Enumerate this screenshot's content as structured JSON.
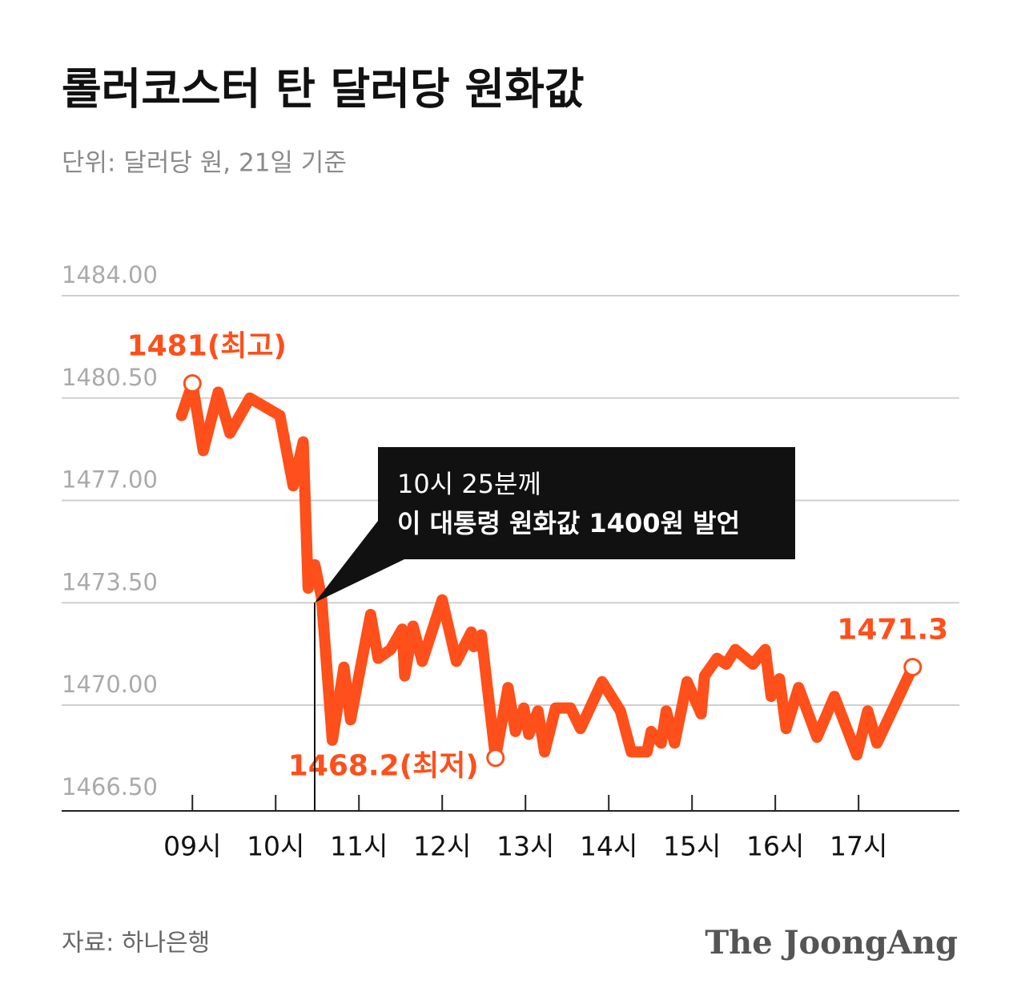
{
  "chart_data": {
    "type": "line",
    "title": "롤러코스터 탄 달러당 원화값",
    "subtitle": "단위: 달러당 원, 21일 기준",
    "source": "자료: 하나은행",
    "brand": "The JoongAng",
    "annotation": {
      "lines": [
        "10시 25분께",
        "이 대통령 원화값 1400원 발언"
      ]
    },
    "color": "#ff4f1a",
    "x": [
      8.87,
      9.0,
      9.13,
      9.31,
      9.45,
      9.69,
      10.05,
      10.21,
      10.33,
      10.39,
      10.47,
      10.55,
      10.68,
      10.82,
      10.9,
      11.14,
      11.23,
      11.38,
      11.52,
      11.55,
      11.65,
      11.76,
      12.0,
      12.17,
      12.35,
      12.38,
      12.47,
      12.64,
      12.79,
      12.88,
      12.98,
      13.04,
      13.15,
      13.23,
      13.36,
      13.54,
      13.66,
      13.92,
      14.14,
      14.27,
      14.46,
      14.51,
      14.63,
      14.69,
      14.79,
      14.94,
      15.11,
      15.15,
      15.3,
      15.41,
      15.52,
      15.73,
      15.88,
      15.95,
      16.05,
      16.13,
      16.28,
      16.5,
      16.71,
      16.98,
      17.11,
      17.22,
      17.65
    ],
    "values": [
      1479.9,
      1481,
      1478.7,
      1480.7,
      1479.3,
      1480.5,
      1479.9,
      1477.5,
      1479.0,
      1474.0,
      1474.8,
      1473.7,
      1468.8,
      1471.3,
      1469.5,
      1473.1,
      1471.6,
      1471.9,
      1472.6,
      1471.0,
      1472.7,
      1471.5,
      1473.6,
      1471.5,
      1472.5,
      1472.0,
      1472.4,
      1468.2,
      1470.6,
      1469.1,
      1469.9,
      1469.0,
      1469.8,
      1468.4,
      1469.9,
      1469.9,
      1469.2,
      1470.8,
      1469.8,
      1468.4,
      1468.4,
      1469.1,
      1468.7,
      1469.8,
      1468.7,
      1470.8,
      1469.7,
      1471.0,
      1471.6,
      1471.4,
      1471.9,
      1471.4,
      1471.9,
      1470.3,
      1470.9,
      1469.2,
      1470.6,
      1468.9,
      1470.3,
      1468.3,
      1469.8,
      1468.7,
      1471.3
    ],
    "value_labels": [
      null,
      "1481(최고)",
      null,
      null,
      null,
      null,
      null,
      null,
      null,
      null,
      null,
      null,
      null,
      null,
      null,
      null,
      null,
      null,
      null,
      null,
      null,
      null,
      null,
      null,
      null,
      null,
      null,
      "1468.2(최저)",
      null,
      null,
      null,
      null,
      null,
      null,
      null,
      null,
      null,
      null,
      null,
      null,
      null,
      null,
      null,
      null,
      null,
      null,
      null,
      null,
      null,
      null,
      null,
      null,
      null,
      null,
      null,
      null,
      null,
      null,
      null,
      null,
      null,
      null,
      "1471.3"
    ],
    "xlim": [
      7.43,
      18.21
    ],
    "xticks": [
      {
        "value": 9,
        "label": "09시"
      },
      {
        "value": 10,
        "label": "10시"
      },
      {
        "value": 11,
        "label": "11시"
      },
      {
        "value": 12,
        "label": "12시"
      },
      {
        "value": 13,
        "label": "13시"
      },
      {
        "value": 14,
        "label": "14시"
      },
      {
        "value": 15,
        "label": "15시"
      },
      {
        "value": 16,
        "label": "16시"
      },
      {
        "value": 17,
        "label": "17시"
      }
    ],
    "ylim": [
      1466.5,
      1484
    ],
    "yticks": [
      {
        "value": 1466.5,
        "label": "1466.50"
      },
      {
        "value": 1470,
        "label": "1470.00"
      },
      {
        "value": 1473.5,
        "label": "1473.50"
      },
      {
        "value": 1477,
        "label": "1477.00"
      },
      {
        "value": 1480.5,
        "label": "1480.50"
      },
      {
        "value": 1484,
        "label": "1484.00"
      }
    ],
    "grid": true
  }
}
